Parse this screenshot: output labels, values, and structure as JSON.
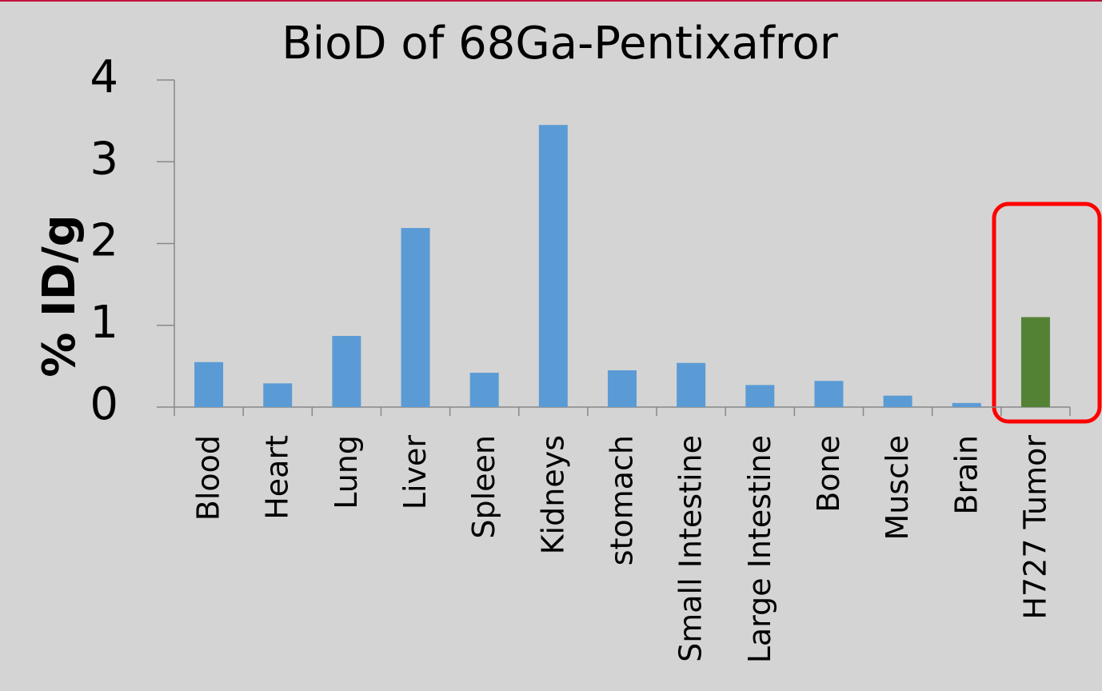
{
  "chart_data": {
    "type": "bar",
    "title": "BioD of 68Ga-Pentixafror",
    "y_label": "% ID/g",
    "categories": [
      "Blood",
      "Heart",
      "Lung",
      "Liver",
      "Spleen",
      "Kidneys",
      "stomach",
      "Small Intestine",
      "Large Intestine",
      "Bone",
      "Muscle",
      "Brain",
      "H727 Tumor"
    ],
    "values": [
      0.55,
      0.29,
      0.87,
      2.19,
      0.42,
      3.45,
      0.45,
      0.54,
      0.27,
      0.32,
      0.14,
      0.05,
      1.1
    ],
    "colors": [
      "#5b9bd5",
      "#5b9bd5",
      "#5b9bd5",
      "#5b9bd5",
      "#5b9bd5",
      "#5b9bd5",
      "#5b9bd5",
      "#5b9bd5",
      "#5b9bd5",
      "#5b9bd5",
      "#5b9bd5",
      "#5b9bd5",
      "#548235"
    ],
    "ylim": [
      0,
      4
    ],
    "yticks": [
      0,
      1,
      2,
      3,
      4
    ],
    "grid": false
  }
}
